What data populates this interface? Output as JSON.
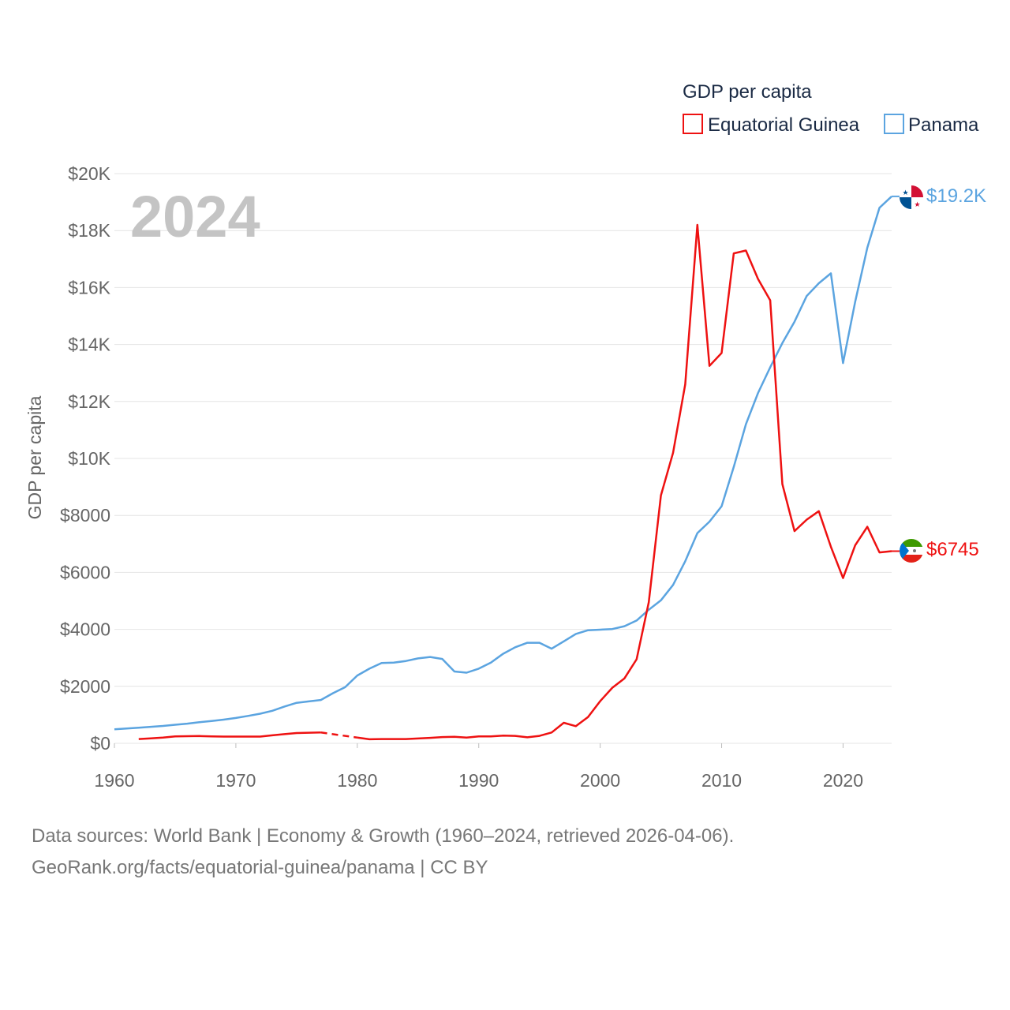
{
  "chart_data": {
    "type": "line",
    "title": "GDP per capita",
    "year_label": "2024",
    "ylabel": "GDP per capita",
    "xlabel": "",
    "xlim": [
      1960,
      2024
    ],
    "ylim": [
      0,
      20000
    ],
    "x_ticks": [
      1960,
      1970,
      1980,
      1990,
      2000,
      2010,
      2020
    ],
    "y_ticks": [
      {
        "value": 0,
        "label": "$0"
      },
      {
        "value": 2000,
        "label": "$2000"
      },
      {
        "value": 4000,
        "label": "$4000"
      },
      {
        "value": 6000,
        "label": "$6000"
      },
      {
        "value": 8000,
        "label": "$8000"
      },
      {
        "value": 10000,
        "label": "$10K"
      },
      {
        "value": 12000,
        "label": "$12K"
      },
      {
        "value": 14000,
        "label": "$14K"
      },
      {
        "value": 16000,
        "label": "$16K"
      },
      {
        "value": 18000,
        "label": "$18K"
      },
      {
        "value": 20000,
        "label": "$20K"
      }
    ],
    "grid": true,
    "legend_position": "top-right",
    "series": [
      {
        "name": "Equatorial Guinea",
        "color": "#ee1111",
        "end_label": "$6745",
        "gap": [
          1977,
          1980
        ],
        "x": [
          1962,
          1963,
          1964,
          1965,
          1966,
          1967,
          1968,
          1969,
          1970,
          1971,
          1972,
          1973,
          1974,
          1975,
          1976,
          1977,
          1980,
          1981,
          1982,
          1983,
          1984,
          1985,
          1986,
          1987,
          1988,
          1989,
          1990,
          1991,
          1992,
          1993,
          1994,
          1995,
          1996,
          1997,
          1998,
          1999,
          2000,
          2001,
          2002,
          2003,
          2004,
          2005,
          2006,
          2007,
          2008,
          2009,
          2010,
          2011,
          2012,
          2013,
          2014,
          2015,
          2016,
          2017,
          2018,
          2019,
          2020,
          2021,
          2022,
          2023,
          2024
        ],
        "values": [
          150,
          175,
          200,
          240,
          250,
          255,
          240,
          235,
          235,
          235,
          235,
          280,
          320,
          360,
          370,
          380,
          200,
          140,
          150,
          150,
          150,
          170,
          190,
          220,
          230,
          200,
          240,
          240,
          270,
          260,
          210,
          260,
          380,
          720,
          600,
          920,
          1480,
          1950,
          2280,
          2950,
          4950,
          8700,
          10200,
          12600,
          18200,
          13250,
          13700,
          17200,
          17300,
          16300,
          15550,
          9100,
          7450,
          7850,
          8150,
          6900,
          5800,
          6950,
          7600,
          6700,
          6745
        ]
      },
      {
        "name": "Panama",
        "color": "#5ba4e0",
        "end_label": "$19.2K",
        "x": [
          1960,
          1961,
          1962,
          1963,
          1964,
          1965,
          1966,
          1967,
          1968,
          1969,
          1970,
          1971,
          1972,
          1973,
          1974,
          1975,
          1976,
          1977,
          1978,
          1979,
          1980,
          1981,
          1982,
          1983,
          1984,
          1985,
          1986,
          1987,
          1988,
          1989,
          1990,
          1991,
          1992,
          1993,
          1994,
          1995,
          1996,
          1997,
          1998,
          1999,
          2000,
          2001,
          2002,
          2003,
          2004,
          2005,
          2006,
          2007,
          2008,
          2009,
          2010,
          2011,
          2012,
          2013,
          2014,
          2015,
          2016,
          2017,
          2018,
          2019,
          2020,
          2021,
          2022,
          2023,
          2024
        ],
        "values": [
          490,
          520,
          545,
          580,
          610,
          650,
          690,
          740,
          780,
          830,
          890,
          960,
          1040,
          1140,
          1290,
          1420,
          1470,
          1520,
          1760,
          1970,
          2380,
          2620,
          2820,
          2830,
          2890,
          2980,
          3030,
          2960,
          2520,
          2480,
          2620,
          2830,
          3140,
          3370,
          3530,
          3530,
          3320,
          3580,
          3840,
          3970,
          3990,
          4010,
          4110,
          4310,
          4690,
          5020,
          5560,
          6390,
          7380,
          7780,
          8320,
          9700,
          11200,
          12300,
          13200,
          14050,
          14800,
          15700,
          16150,
          16500,
          13350,
          15500,
          17400,
          18800,
          19200
        ]
      }
    ]
  },
  "footer": {
    "line1": "Data sources: World Bank | Economy & Growth (1960–2024, retrieved 2026-04-06).",
    "line2": "GeoRank.org/facts/equatorial-guinea/panama | CC BY"
  }
}
